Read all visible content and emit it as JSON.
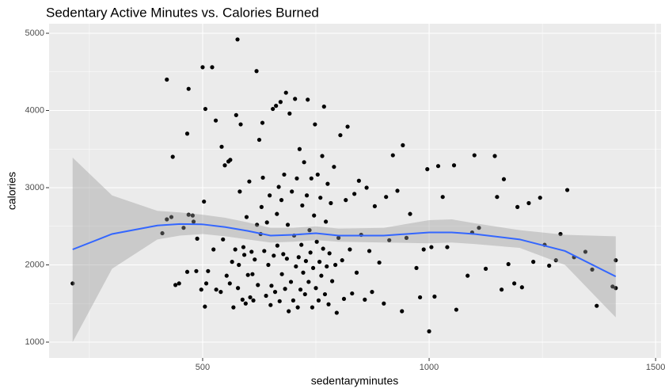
{
  "chart_data": {
    "type": "scatter",
    "title": "Sedentary Active Minutes vs. Calories Burned",
    "x_label": "sedentaryminutes",
    "y_label": "calories",
    "xlim": [
      161,
      1512
    ],
    "ylim": [
      795,
      5123
    ],
    "xticks": [
      500,
      1000,
      1500
    ],
    "yticks": [
      1000,
      2000,
      3000,
      4000,
      5000
    ],
    "minor_xticks": [
      250,
      750,
      1250
    ],
    "minor_yticks": [
      1500,
      2500,
      3500,
      4500
    ],
    "grid": true,
    "points": {
      "color": "#000000",
      "x": [
        213,
        411,
        421,
        431,
        421,
        434,
        440,
        448,
        458,
        466,
        466,
        469,
        469,
        478,
        480,
        486,
        488,
        497,
        500,
        503,
        506,
        508,
        505,
        512,
        521,
        524,
        529,
        530,
        540,
        542,
        545,
        549,
        553,
        557,
        560,
        561,
        565,
        568,
        572,
        574,
        577,
        578,
        580,
        582,
        584,
        588,
        590,
        592,
        595,
        597,
        600,
        603,
        605,
        608,
        610,
        612,
        615,
        619,
        620,
        622,
        625,
        628,
        630,
        632,
        633,
        636,
        640,
        642,
        645,
        648,
        650,
        652,
        655,
        657,
        660,
        662,
        664,
        665,
        668,
        670,
        672,
        674,
        675,
        678,
        680,
        682,
        684,
        686,
        688,
        690,
        692,
        695,
        697,
        700,
        702,
        704,
        706,
        708,
        710,
        712,
        714,
        716,
        718,
        720,
        722,
        724,
        726,
        728,
        730,
        732,
        734,
        736,
        738,
        740,
        742,
        744,
        746,
        748,
        750,
        752,
        754,
        756,
        758,
        760,
        762,
        764,
        766,
        768,
        770,
        772,
        774,
        776,
        778,
        780,
        783,
        786,
        790,
        793,
        796,
        800,
        804,
        808,
        812,
        816,
        820,
        825,
        830,
        835,
        840,
        845,
        850,
        858,
        862,
        868,
        874,
        880,
        890,
        900,
        905,
        912,
        920,
        930,
        940,
        942,
        950,
        958,
        972,
        980,
        988,
        996,
        1000,
        1005,
        1012,
        1020,
        1030,
        1040,
        1055,
        1060,
        1085,
        1095,
        1100,
        1110,
        1125,
        1145,
        1150,
        1160,
        1165,
        1175,
        1188,
        1195,
        1205,
        1220,
        1230,
        1245,
        1255,
        1265,
        1280,
        1290,
        1305,
        1320,
        1345,
        1360,
        1370,
        1405,
        1412,
        1412
      ],
      "y": [
        1760,
        2410,
        2590,
        2620,
        4400,
        3400,
        1740,
        1760,
        2480,
        1910,
        3700,
        2650,
        4280,
        2640,
        2560,
        1920,
        2340,
        1680,
        4560,
        2820,
        4020,
        1760,
        1460,
        1920,
        4560,
        2200,
        3870,
        1680,
        1650,
        3530,
        2330,
        3290,
        1860,
        3340,
        1760,
        3360,
        2040,
        1450,
        2200,
        3940,
        4920,
        1700,
        2000,
        2950,
        3820,
        1550,
        2230,
        2130,
        1500,
        2620,
        1870,
        3080,
        1580,
        2170,
        1880,
        1540,
        2070,
        4510,
        2520,
        1740,
        3620,
        2400,
        2750,
        3840,
        3130,
        2180,
        1600,
        2550,
        2000,
        2900,
        1480,
        1730,
        4020,
        2120,
        1650,
        4060,
        2660,
        2250,
        3010,
        1530,
        4110,
        2840,
        1880,
        2140,
        3170,
        1690,
        4230,
        2080,
        2520,
        1400,
        3960,
        1780,
        2950,
        1540,
        2380,
        4150,
        1980,
        3120,
        1450,
        2100,
        3500,
        1680,
        2260,
        2770,
        1900,
        3330,
        1620,
        2050,
        2900,
        4140,
        1780,
        2450,
        2160,
        3120,
        1450,
        1960,
        2640,
        3820,
        1700,
        2300,
        3170,
        1540,
        2040,
        2870,
        1860,
        3410,
        2210,
        4050,
        1620,
        2560,
        1980,
        3050,
        1490,
        2150,
        2800,
        1790,
        3270,
        2000,
        1380,
        2350,
        3680,
        2060,
        1560,
        2840,
        3790,
        2200,
        1630,
        2920,
        1900,
        3090,
        2390,
        1550,
        3000,
        2180,
        1650,
        2760,
        2030,
        1500,
        2880,
        2320,
        3420,
        2960,
        1400,
        3550,
        2350,
        2660,
        1960,
        1580,
        2200,
        3240,
        1140,
        2230,
        1590,
        3280,
        2880,
        2230,
        3290,
        1420,
        1860,
        2420,
        3420,
        2480,
        1950,
        3410,
        2880,
        1680,
        3110,
        2010,
        1760,
        2750,
        1710,
        2800,
        2040,
        2870,
        2260,
        1990,
        2060,
        2400,
        2970,
        2100,
        2170,
        1940,
        1470,
        1720,
        1700,
        2060
      ]
    },
    "smooth": {
      "color": "#3366ff",
      "band_color": "#999999",
      "x": [
        213,
        300,
        400,
        450,
        500,
        550,
        600,
        650,
        700,
        750,
        800,
        900,
        1000,
        1050,
        1100,
        1200,
        1300,
        1412
      ],
      "y": [
        2200,
        2400,
        2510,
        2530,
        2525,
        2490,
        2440,
        2380,
        2390,
        2410,
        2380,
        2380,
        2420,
        2420,
        2400,
        2330,
        2180,
        1850
      ],
      "lower": [
        1000,
        1950,
        2330,
        2380,
        2400,
        2370,
        2330,
        2290,
        2300,
        2320,
        2300,
        2290,
        2280,
        2290,
        2270,
        2220,
        2000,
        1320
      ],
      "upper": [
        3390,
        2900,
        2700,
        2680,
        2650,
        2610,
        2550,
        2480,
        2480,
        2500,
        2470,
        2480,
        2580,
        2590,
        2540,
        2450,
        2390,
        2370
      ]
    }
  }
}
